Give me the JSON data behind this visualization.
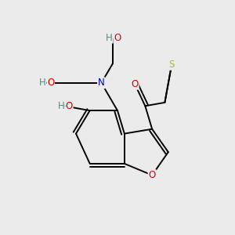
{
  "background_color": "#ebebeb",
  "atom_colors": {
    "C": "#000000",
    "O": "#dd0000",
    "N": "#0000cc",
    "S": "#bbbb00",
    "H": "#888888"
  },
  "bond_lw": 1.4,
  "font_size": 8.5
}
